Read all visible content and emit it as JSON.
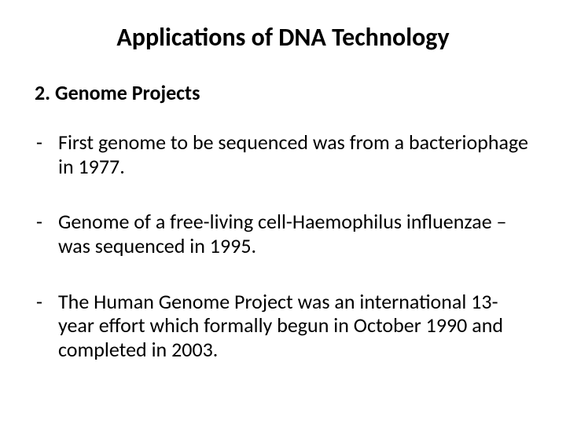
{
  "title_fontsize": 32,
  "subtitle_fontsize": 26,
  "body_fontsize": 26,
  "text_color": "#000000",
  "background_color": "#ffffff",
  "font_family": "Calibri",
  "title": "Applications of DNA Technology",
  "subtitle": "2. Genome Projects",
  "bullets": [
    "First genome to be sequenced was from a bacteriophage in 1977.",
    "Genome of a free-living cell-Haemophilus influenzae – was sequenced in 1995.",
    "The Human Genome Project was an international 13-year effort which formally begun in October 1990 and completed in 2003."
  ]
}
